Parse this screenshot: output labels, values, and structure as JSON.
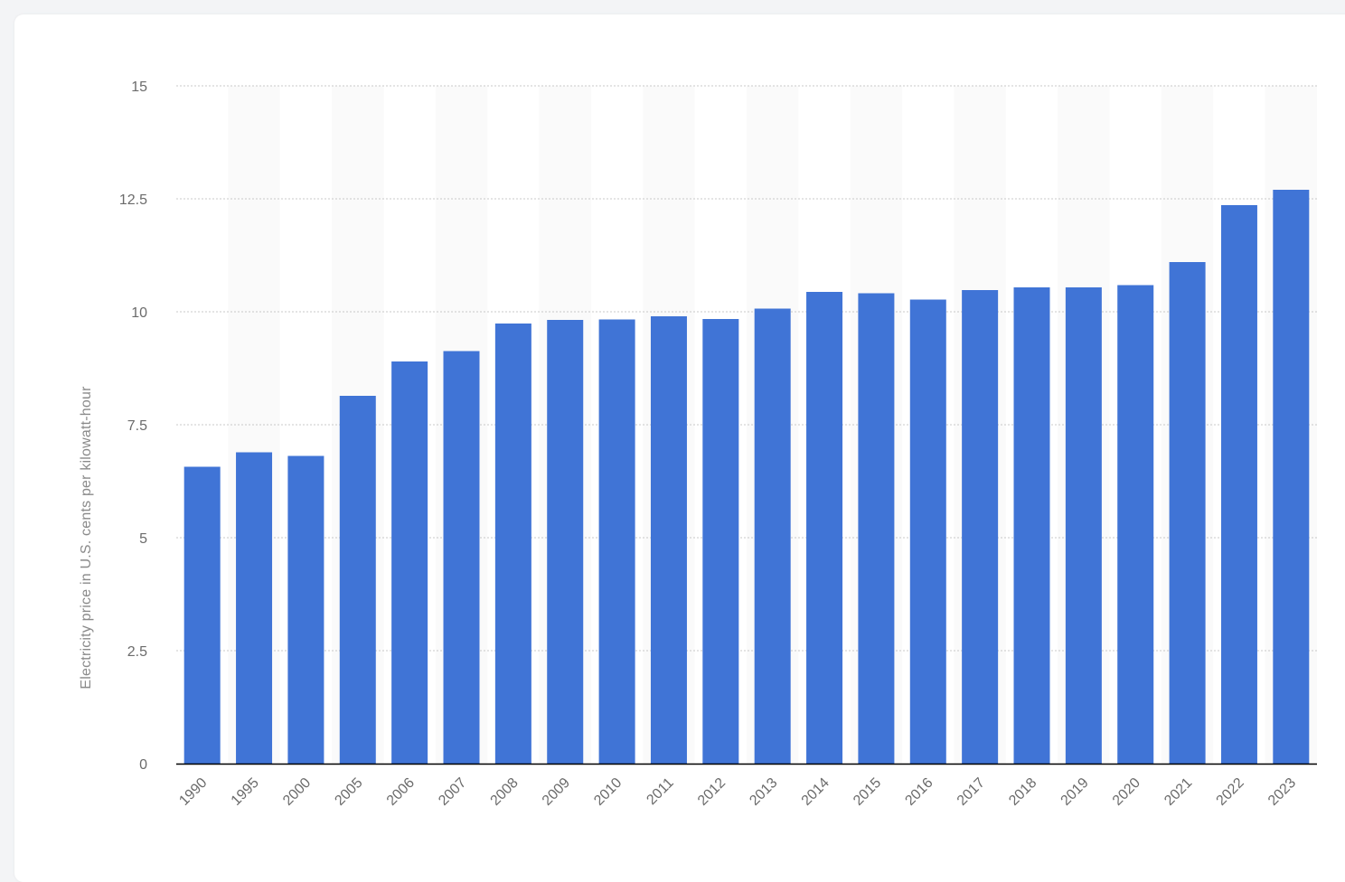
{
  "chart_data": {
    "type": "bar",
    "title": "",
    "xlabel": "",
    "ylabel": "Electricity price in U.S. cents per kilowatt-hour",
    "categories": [
      "1990",
      "1995",
      "2000",
      "2005",
      "2006",
      "2007",
      "2008",
      "2009",
      "2010",
      "2011",
      "2012",
      "2013",
      "2014",
      "2015",
      "2016",
      "2017",
      "2018",
      "2019",
      "2020",
      "2021",
      "2022",
      "2023"
    ],
    "values": [
      6.57,
      6.89,
      6.81,
      8.14,
      8.9,
      9.13,
      9.74,
      9.82,
      9.83,
      9.9,
      9.84,
      10.07,
      10.44,
      10.41,
      10.27,
      10.48,
      10.54,
      10.54,
      10.59,
      11.1,
      12.36,
      12.7
    ],
    "ylim": [
      0,
      15
    ],
    "yticks": [
      0,
      2.5,
      5,
      7.5,
      10,
      12.5,
      15
    ],
    "ytick_labels": [
      "0",
      "2.5",
      "5",
      "7.5",
      "10",
      "12.5",
      "15"
    ],
    "grid": true,
    "legend": "none",
    "bar_color": "#4074d6",
    "band_color": "#fafafa",
    "grid_color": "#c8c8c8",
    "axis_color": "#000000"
  }
}
